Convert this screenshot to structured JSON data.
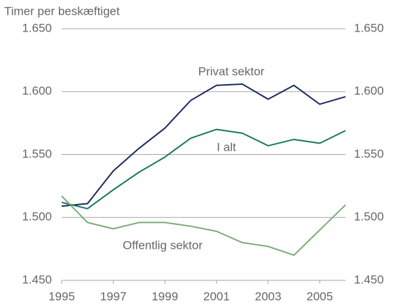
{
  "chart_data": {
    "type": "line",
    "y_label": "Timer per beskæftiget",
    "x": [
      1995,
      1996,
      1997,
      1998,
      1999,
      2000,
      2001,
      2002,
      2003,
      2004,
      2005,
      2006
    ],
    "xlim": [
      1995,
      2006
    ],
    "xticks": [
      1995,
      1997,
      1999,
      2001,
      2003,
      2005
    ],
    "ylim": [
      1450,
      1650
    ],
    "yticks": [
      {
        "value": 1450,
        "label": "1.450"
      },
      {
        "value": 1500,
        "label": "1.500"
      },
      {
        "value": 1550,
        "label": "1.550"
      },
      {
        "value": 1600,
        "label": "1.600"
      },
      {
        "value": 1650,
        "label": "1.650"
      }
    ],
    "y2lim": [
      1450,
      1650
    ],
    "y2ticks": [
      {
        "value": 1450,
        "label": "1.450"
      },
      {
        "value": 1500,
        "label": "1.500"
      },
      {
        "value": 1550,
        "label": "1.550"
      },
      {
        "value": 1600,
        "label": "1.600"
      },
      {
        "value": 1650,
        "label": "1.650"
      }
    ],
    "grid": true,
    "series": [
      {
        "name": "Privat sektor",
        "color": "#1b2a5c",
        "values": [
          1509,
          1511,
          1537,
          1555,
          1571,
          1593,
          1605,
          1606,
          1594,
          1605,
          1590,
          1596
        ]
      },
      {
        "name": "I alt",
        "color": "#17795a",
        "values": [
          1512,
          1507,
          1522,
          1536,
          1548,
          1563,
          1570,
          1567,
          1557,
          1562,
          1559,
          1569
        ]
      },
      {
        "name": "Offentlig sektor",
        "color": "#7aac78",
        "values": [
          1517,
          1496,
          1491,
          1496,
          1496,
          1493,
          1489,
          1480,
          1477,
          1470,
          1490,
          1510
        ]
      }
    ]
  }
}
